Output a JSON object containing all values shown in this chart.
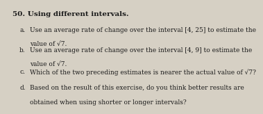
{
  "title": "50. Using different intervals.",
  "lines": [
    {
      "indent": "a.",
      "text1": "Use an average rate of change over the interval [4, 25] to estimate the",
      "text2": "value of √7."
    },
    {
      "indent": "b.",
      "text1": "Use an average rate of change over the interval [4, 9] to estimate the",
      "text2": "value of √7."
    },
    {
      "indent": "c.",
      "text1": "Which of the two preceding estimates is nearer the actual value of √7?",
      "text2": ""
    },
    {
      "indent": "d.",
      "text1": "Based on the result of this exercise, do you think better results are",
      "text2": "obtained when using shorter or longer intervals?"
    }
  ],
  "bg_color": "#d6d0c4",
  "text_color": "#1a1a1a",
  "title_fontsize": 7.5,
  "body_fontsize": 6.5
}
